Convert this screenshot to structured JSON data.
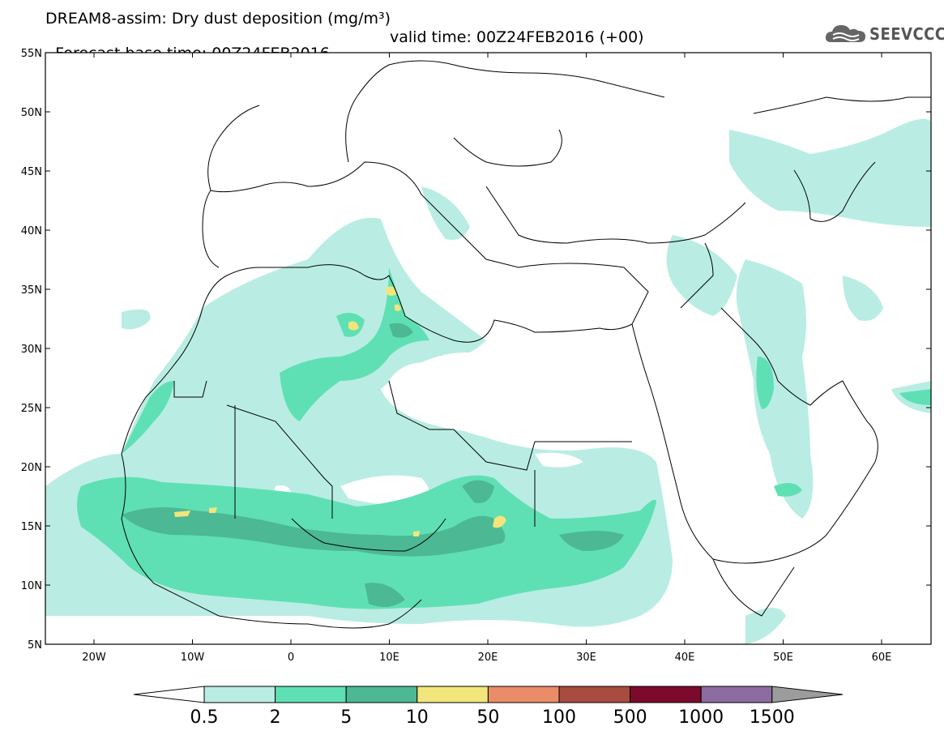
{
  "header": {
    "title_line1": "DREAM8-assim: Dry dust deposition (mg/m³)",
    "forecast_base": "Forecast base time: 00Z24FEB2016",
    "valid_time": "valid time: 00Z24FEB2016 (+00)"
  },
  "logo": {
    "text": "SEEVCCC",
    "icon": "cloud-icon"
  },
  "map": {
    "lat_ticks": [
      "55N",
      "50N",
      "45N",
      "40N",
      "35N",
      "30N",
      "25N",
      "20N",
      "15N",
      "10N",
      "5N"
    ],
    "lon_ticks": [
      "20W",
      "10W",
      "0",
      "10E",
      "20E",
      "30E",
      "40E",
      "50E",
      "60E"
    ],
    "colors": {
      "c05": "#b9ede3",
      "c2": "#5fe0b4",
      "c5": "#4cb894",
      "c10": "#f2e57c",
      "c50": "#eb8c68",
      "c100": "#a84c40",
      "c500": "#7c0a2c",
      "c1000": "#8c6ca0",
      "c1500": "#9c9c9c"
    }
  },
  "colorbar": {
    "labels": [
      "0.5",
      "2",
      "5",
      "10",
      "50",
      "100",
      "500",
      "1000",
      "1500"
    ]
  }
}
